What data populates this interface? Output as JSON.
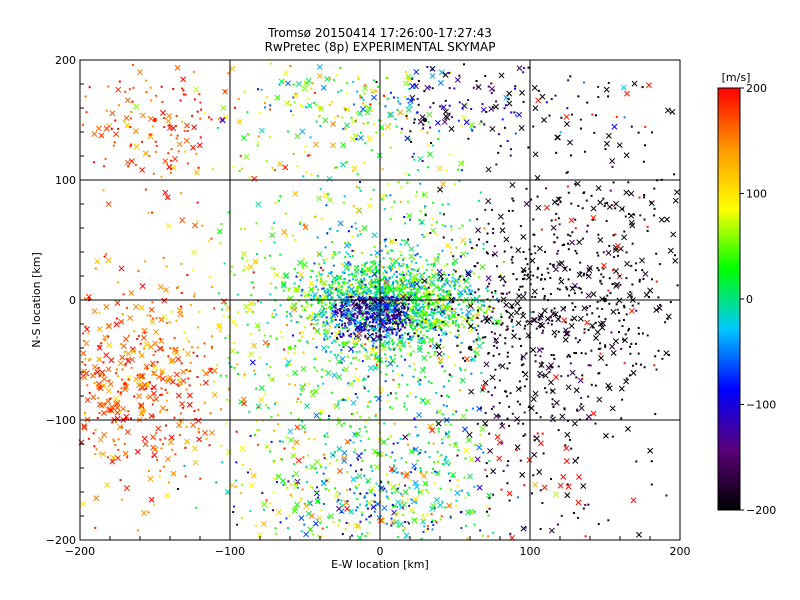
{
  "chart_data": {
    "type": "scatter",
    "title": "Tromsø 20150414 17:26:00-17:27:43",
    "subtitle": "RwPretec (8p) EXPERIMENTAL SKYMAP",
    "xlabel": "E-W location [km]",
    "ylabel": "N-S location [km]",
    "xlim": [
      -200,
      200
    ],
    "ylim": [
      -200,
      200
    ],
    "xticks": [
      -200,
      -100,
      0,
      100,
      200
    ],
    "yticks": [
      -200,
      -100,
      0,
      100,
      200
    ],
    "grid": true,
    "colorbar": {
      "label": "[m/s]",
      "range": [
        -200,
        200
      ],
      "ticks": [
        200,
        100,
        0,
        -100,
        -200
      ],
      "colors": [
        "#000000",
        "#5a0078",
        "#0000ff",
        "#00c8ff",
        "#00ff00",
        "#ffff00",
        "#ff9600",
        "#ff0000"
      ]
    },
    "points": [
      {
        "x": 0,
        "y": 0,
        "v": 0
      },
      {
        "x": -10,
        "y": -20,
        "v": -150
      },
      {
        "x": 20,
        "y": 5,
        "v": 20
      },
      {
        "x": 60,
        "y": -40,
        "v": -200
      },
      {
        "x": -170,
        "y": -70,
        "v": 180
      },
      {
        "x": -150,
        "y": 150,
        "v": 190
      },
      {
        "x": -60,
        "y": -40,
        "v": 50
      },
      {
        "x": 150,
        "y": 0,
        "v": -190
      },
      {
        "x": 30,
        "y": 150,
        "v": -190
      },
      {
        "x": -40,
        "y": 160,
        "v": 80
      }
    ]
  }
}
